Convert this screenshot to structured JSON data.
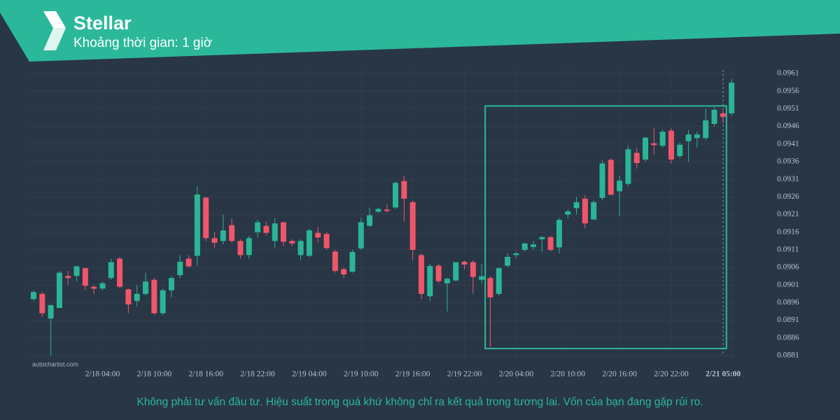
{
  "chart_data": {
    "type": "candlestick",
    "title": "Stellar",
    "subtitle": "Khoảng thời gian: 1 giờ",
    "categories": [
      null,
      null,
      null,
      null,
      null,
      null,
      null,
      null,
      "2/18 04:00",
      null,
      null,
      null,
      null,
      null,
      "2/18 10:00",
      null,
      null,
      null,
      null,
      null,
      "2/18 16:00",
      null,
      null,
      null,
      null,
      null,
      "2/18 22:00",
      null,
      null,
      null,
      null,
      null,
      "2/19 04:00",
      null,
      null,
      null,
      null,
      null,
      "2/19 10:00",
      null,
      null,
      null,
      null,
      null,
      "2/19 16:00",
      null,
      null,
      null,
      null,
      null,
      "2/19 22:00",
      null,
      null,
      null,
      null,
      null,
      "2/20 04:00",
      null,
      null,
      null,
      null,
      null,
      "2/20 10:00",
      null,
      null,
      null,
      null,
      null,
      "2/20 16:00",
      null,
      null,
      null,
      null,
      null,
      "2/20 22:00",
      null,
      null,
      null,
      null,
      null,
      null,
      "2/21 05:00"
    ],
    "open": [
      0.0897,
      0.08985,
      0.08915,
      0.08945,
      0.09036,
      0.09036,
      0.09058,
      0.09005,
      0.09,
      0.0903,
      0.09085,
      0.08998,
      0.08965,
      0.08985,
      0.09025,
      0.0893,
      0.08995,
      0.09038,
      0.09085,
      0.09093,
      0.09258,
      0.09143,
      0.09135,
      0.0918,
      0.09135,
      0.09095,
      0.0916,
      0.09178,
      0.09135,
      0.09188,
      0.09135,
      0.09095,
      0.09093,
      0.09158,
      0.09155,
      0.09105,
      0.09055,
      0.09048,
      0.09114,
      0.09178,
      0.09218,
      0.09224,
      0.0923,
      0.09305,
      0.09245,
      0.09095,
      0.08978,
      0.09065,
      0.09015,
      0.09023,
      0.09076,
      0.09075,
      0.09025,
      0.0903,
      0.08985,
      0.09065,
      0.09095,
      0.0911,
      0.09118,
      0.0914,
      0.09146,
      0.09117,
      0.0921,
      0.09228,
      0.09255,
      0.09196,
      0.09257,
      0.09365,
      0.09276,
      0.09297,
      0.09385,
      0.09366,
      0.09412,
      0.09405,
      0.09448,
      0.09376,
      0.09418,
      0.09427,
      0.09427,
      0.09467,
      0.09497,
      0.09497
    ],
    "high": [
      0.08995,
      0.0899,
      0.08955,
      0.0905,
      0.0905,
      0.09065,
      0.0906,
      0.0901,
      0.0902,
      0.09085,
      0.0909,
      0.09,
      0.0901,
      0.09045,
      0.0903,
      0.09,
      0.09035,
      0.09095,
      0.09095,
      0.0929,
      0.0926,
      0.0916,
      0.0921,
      0.092,
      0.0914,
      0.0915,
      0.09195,
      0.0919,
      0.092,
      0.0919,
      0.0914,
      0.0914,
      0.0917,
      0.09175,
      0.0916,
      0.0911,
      0.0906,
      0.0911,
      0.092,
      0.0923,
      0.0923,
      0.0924,
      0.09305,
      0.0932,
      0.0925,
      0.091,
      0.0907,
      0.0907,
      0.0903,
      0.09075,
      0.0908,
      0.0908,
      0.0907,
      0.09035,
      0.0906,
      0.091,
      0.09105,
      0.0913,
      0.09135,
      0.0915,
      0.0915,
      0.092,
      0.09225,
      0.0926,
      0.09265,
      0.0925,
      0.09365,
      0.0937,
      0.0932,
      0.09405,
      0.094,
      0.0943,
      0.09455,
      0.0945,
      0.09455,
      0.09415,
      0.0945,
      0.09445,
      0.0951,
      0.09515,
      0.09505,
      0.09595
    ],
    "low": [
      0.08965,
      0.0892,
      0.0881,
      0.08945,
      0.0901,
      0.0902,
      0.08995,
      0.08985,
      0.08995,
      0.09025,
      0.09,
      0.0893,
      0.0895,
      0.0898,
      0.08925,
      0.08925,
      0.08975,
      0.0903,
      0.0906,
      0.09065,
      0.09135,
      0.09115,
      0.09125,
      0.0913,
      0.09085,
      0.09085,
      0.09145,
      0.0915,
      0.09115,
      0.0912,
      0.0912,
      0.0908,
      0.0909,
      0.0913,
      0.0911,
      0.09045,
      0.0903,
      0.09045,
      0.0911,
      0.09175,
      0.09215,
      0.09215,
      0.09225,
      0.0919,
      0.0908,
      0.0897,
      0.08965,
      0.09015,
      0.08935,
      0.0902,
      0.09055,
      0.08985,
      0.09015,
      0.08835,
      0.0898,
      0.0906,
      0.09085,
      0.09105,
      0.0911,
      0.09105,
      0.09105,
      0.091,
      0.092,
      0.0921,
      0.0917,
      0.09195,
      0.0925,
      0.09265,
      0.09205,
      0.0929,
      0.0934,
      0.0936,
      0.0938,
      0.094,
      0.09355,
      0.0937,
      0.0936,
      0.094,
      0.0942,
      0.0946,
      0.0947,
      0.0949
    ],
    "close": [
      0.0899,
      0.0893,
      0.08953,
      0.09045,
      0.0903,
      0.09063,
      0.09008,
      0.09,
      0.09015,
      0.09075,
      0.09005,
      0.08955,
      0.08985,
      0.0902,
      0.0893,
      0.08995,
      0.0903,
      0.09076,
      0.09063,
      0.09267,
      0.09143,
      0.0913,
      0.09165,
      0.09135,
      0.09095,
      0.09143,
      0.09188,
      0.09158,
      0.09185,
      0.09133,
      0.09128,
      0.09135,
      0.09165,
      0.09145,
      0.09115,
      0.0905,
      0.0904,
      0.09104,
      0.09188,
      0.09208,
      0.09226,
      0.0922,
      0.093,
      0.09255,
      0.0911,
      0.08985,
      0.09064,
      0.09021,
      0.09028,
      0.09075,
      0.09068,
      0.09033,
      0.09035,
      0.08975,
      0.09058,
      0.0909,
      0.091,
      0.09128,
      0.09125,
      0.09146,
      0.0911,
      0.09195,
      0.09219,
      0.09245,
      0.09185,
      0.09245,
      0.09355,
      0.09266,
      0.09306,
      0.09395,
      0.09356,
      0.09428,
      0.09407,
      0.09445,
      0.09366,
      0.09408,
      0.09437,
      0.09437,
      0.09477,
      0.09507,
      0.09487,
      0.09584
    ],
    "up_color": "#2bb596",
    "down_color": "#f0566a",
    "ylim": [
      0.088,
      0.0962
    ],
    "yticks": [
      0.0881,
      0.0886,
      0.0891,
      0.0896,
      0.0901,
      0.0906,
      0.0911,
      0.0916,
      0.0921,
      0.0926,
      0.0931,
      0.0936,
      0.0941,
      0.0946,
      0.0951,
      0.0956,
      0.0961
    ],
    "grid": true,
    "highlight": {
      "from": 52,
      "to": 80,
      "low": 0.0883,
      "high": 0.09518,
      "color": "#2bb89a"
    },
    "watermark": "autochartist.com"
  },
  "disclaimer": "Không phải tư vấn đầu tư. Hiệu suất trong quá khứ không chỉ ra kết quả trong tương lai. Vốn của bạn đang gặp rủi ro."
}
